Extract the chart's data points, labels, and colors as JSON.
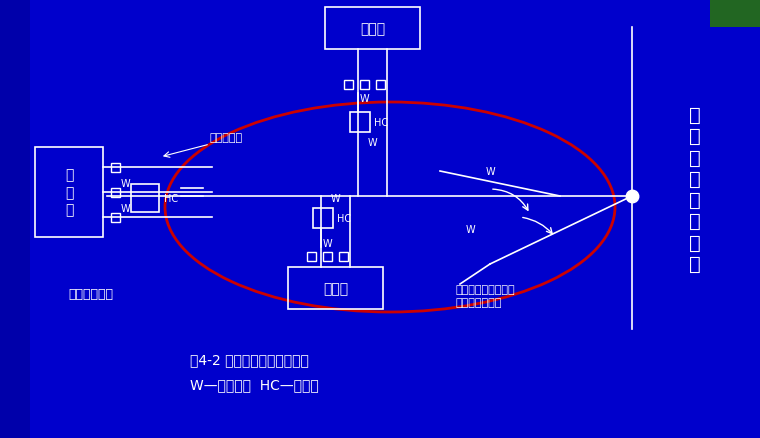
{
  "bg_color": "#0000cc",
  "wc": "#ffffff",
  "ec": "#cc0000",
  "right_text": "市\n政\n排\n水\n管\n网\n干\n线",
  "label_system": "室外排水系统",
  "label_inspect": "排水检查井",
  "label_junction": "市政排水管网与室外\n排水系统碰头点",
  "caption1": "图4-2 室外排水管道系统组成",
  "caption2": "W—污水管道  HC—化粪池",
  "bldg_v": "建\n筑\n物",
  "bldg_h": "建筑物"
}
